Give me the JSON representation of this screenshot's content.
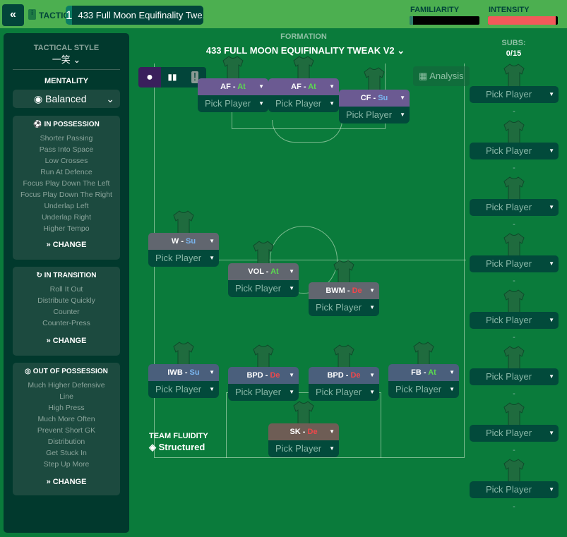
{
  "header": {
    "back_icon": "double-chevron-left",
    "section": "TACTICS",
    "tactic_slot": "1",
    "tactic_name": "433 Full Moon Equifinality Twe...",
    "add": "+",
    "familiarity_label": "FAMILIARITY",
    "familiarity": 0.05,
    "intensity_label": "INTENSITY",
    "intensity": 0.97,
    "familiarity_color": "#2e7d6a",
    "intensity_color": "#f25a5a"
  },
  "left": {
    "tactical_style_label": "TACTICAL STYLE",
    "tactical_style": "一笑",
    "mentality_label": "MENTALITY",
    "mentality": "Balanced",
    "in_possession": {
      "title": "IN POSSESSION",
      "items": [
        "Shorter Passing",
        "Pass Into Space",
        "Low Crosses",
        "Run At Defence",
        "Focus Play Down The Left",
        "Focus Play Down The Right",
        "Underlap Left",
        "Underlap Right",
        "Higher Tempo"
      ],
      "change": "CHANGE"
    },
    "in_transition": {
      "title": "IN TRANSITION",
      "items": [
        "Roll It Out",
        "Distribute Quickly",
        "Counter",
        "Counter-Press"
      ],
      "change": "CHANGE"
    },
    "out_possession": {
      "title": "OUT OF POSSESSION",
      "items": [
        "Much Higher Defensive Line",
        "High Press",
        "Much More Often",
        "Prevent Short GK Distribution",
        "Get Stuck In",
        "Step Up More"
      ],
      "change": "CHANGE"
    }
  },
  "formation": {
    "label": "FORMATION",
    "name": "433 FULL MOON EQUIFINALITY TWEAK V2",
    "analysis": "Analysis",
    "fluidity_label": "TEAM FLUIDITY",
    "fluidity": "Structured"
  },
  "subs": {
    "label": "SUBS:",
    "count": "0/15",
    "pick": "Pick Player",
    "dash": "-"
  },
  "slots": [
    {
      "role": "AF",
      "duty": "At",
      "pick": "Pick Player",
      "type": "att"
    },
    {
      "role": "AF",
      "duty": "At",
      "pick": "Pick Player",
      "type": "att"
    },
    {
      "role": "CF",
      "duty": "Su",
      "pick": "Pick Player",
      "type": "att"
    },
    {
      "role": "W",
      "duty": "Su",
      "pick": "Pick Player",
      "type": "mid"
    },
    {
      "role": "VOL",
      "duty": "At",
      "pick": "Pick Player",
      "type": "mid"
    },
    {
      "role": "BWM",
      "duty": "De",
      "pick": "Pick Player",
      "type": "mid"
    },
    {
      "role": "IWB",
      "duty": "Su",
      "pick": "Pick Player",
      "type": "def"
    },
    {
      "role": "BPD",
      "duty": "De",
      "pick": "Pick Player",
      "type": "def"
    },
    {
      "role": "BPD",
      "duty": "De",
      "pick": "Pick Player",
      "type": "def"
    },
    {
      "role": "FB",
      "duty": "At",
      "pick": "Pick Player",
      "type": "def"
    },
    {
      "role": "SK",
      "duty": "De",
      "pick": "Pick Player",
      "type": "gk"
    }
  ],
  "colors": {
    "att": "#6b5a92",
    "mid": "#61666f",
    "def": "#4a5f7c",
    "gk": "#6e5d55",
    "At": "#5bdc4f",
    "Su": "#7ab6f0",
    "De": "#f0474b"
  }
}
